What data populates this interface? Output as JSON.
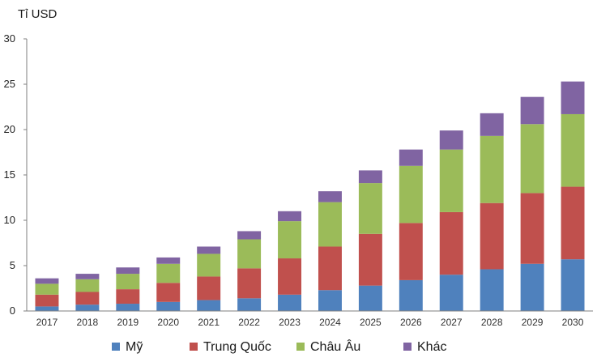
{
  "chart_data": {
    "type": "bar",
    "stacked": true,
    "title": "",
    "xlabel": "",
    "ylabel": "Tỉ USD",
    "ylim": [
      0,
      30
    ],
    "yticks": [
      0,
      5,
      10,
      15,
      20,
      25,
      30
    ],
    "grid": false,
    "legend_position": "bottom",
    "categories": [
      "2017",
      "2018",
      "2019",
      "2020",
      "2021",
      "2022",
      "2023",
      "2024",
      "2025",
      "2026",
      "2027",
      "2028",
      "2029",
      "2030"
    ],
    "series": [
      {
        "name": "Mỹ",
        "color": "#4f81bd",
        "values": [
          0.5,
          0.7,
          0.8,
          1.0,
          1.2,
          1.4,
          1.8,
          2.3,
          2.8,
          3.4,
          4.0,
          4.6,
          5.2,
          5.7
        ]
      },
      {
        "name": "Trung Quốc",
        "color": "#c0504d",
        "values": [
          1.3,
          1.4,
          1.6,
          2.1,
          2.6,
          3.3,
          4.0,
          4.8,
          5.7,
          6.3,
          6.9,
          7.3,
          7.8,
          8.0
        ]
      },
      {
        "name": "Châu Âu",
        "color": "#9bbb59",
        "values": [
          1.2,
          1.4,
          1.7,
          2.1,
          2.5,
          3.2,
          4.1,
          4.9,
          5.6,
          6.3,
          6.9,
          7.4,
          7.6,
          8.0
        ]
      },
      {
        "name": "Khác",
        "color": "#8064a2",
        "values": [
          0.6,
          0.6,
          0.7,
          0.7,
          0.8,
          0.9,
          1.1,
          1.2,
          1.4,
          1.8,
          2.1,
          2.5,
          3.0,
          3.6
        ]
      }
    ]
  }
}
